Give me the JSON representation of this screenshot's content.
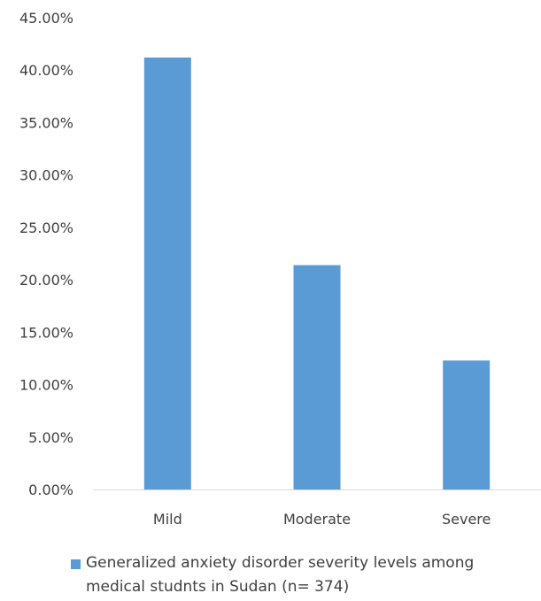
{
  "chart_data": {
    "type": "bar",
    "categories": [
      "Mild",
      "Moderate",
      "Severe"
    ],
    "series": [
      {
        "name": "Generalized anxiety disorder severity levels among medical studnts in Sudan (n= 374)",
        "values": [
          41.2,
          21.4,
          12.3
        ],
        "color": "#5B9BD5"
      }
    ],
    "ylim": [
      0,
      45
    ],
    "yticks": [
      0,
      5,
      10,
      15,
      20,
      25,
      30,
      35,
      40,
      45
    ],
    "ytick_labels": [
      "0.00%",
      "5.00%",
      "10.00%",
      "15.00%",
      "20.00%",
      "25.00%",
      "30.00%",
      "35.00%",
      "40.00%",
      "45.00%"
    ],
    "grid": false,
    "legend_position": "bottom",
    "axis_color": "#D9D9D9"
  }
}
